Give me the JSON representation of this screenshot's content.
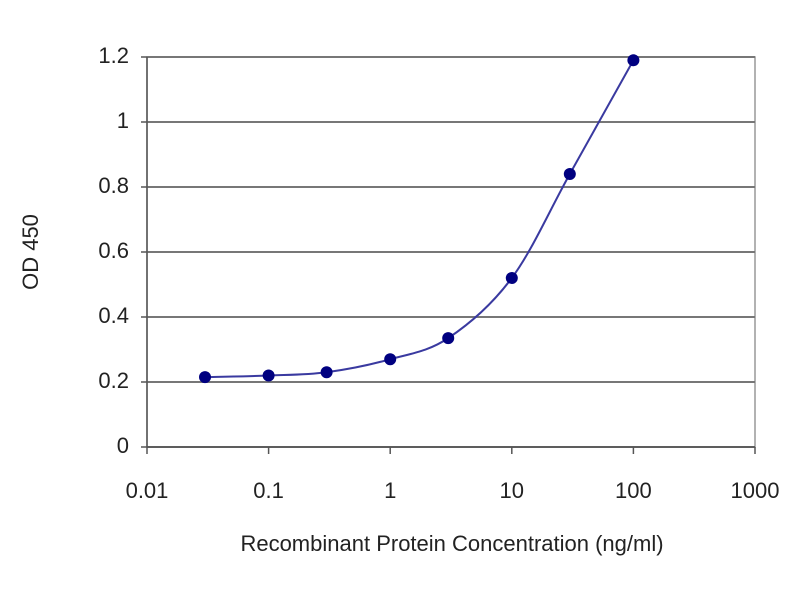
{
  "chart_data": {
    "type": "scatter",
    "xlabel": "Recombinant Protein Concentration (ng/ml)",
    "ylabel": "OD 450",
    "x": [
      0.03,
      0.1,
      0.3,
      1,
      3,
      10,
      30,
      100
    ],
    "values": [
      0.215,
      0.22,
      0.23,
      0.27,
      0.335,
      0.52,
      0.84,
      1.19
    ],
    "color": "#000080",
    "line_color": "#3a3aa0",
    "xscale": "log",
    "xlim": [
      0.01,
      1000
    ],
    "xticks": [
      0.01,
      0.1,
      1,
      10,
      100,
      1000
    ],
    "ylim": [
      0,
      1.2
    ],
    "yticks": [
      0,
      0.2,
      0.4,
      0.6,
      0.8,
      1,
      1.2
    ],
    "grid": true
  }
}
